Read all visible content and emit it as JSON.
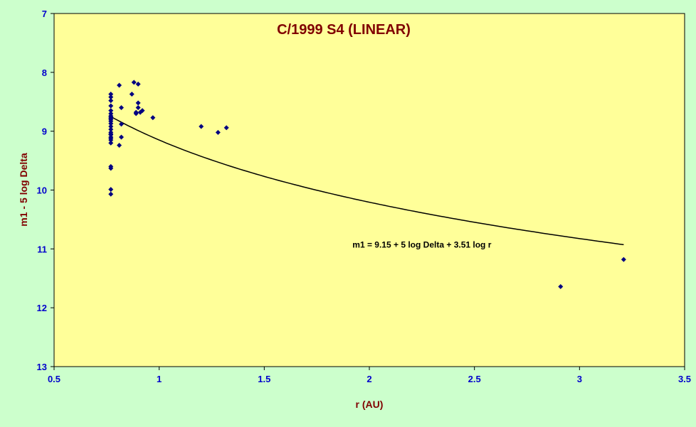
{
  "colors": {
    "page_background": "#ccffcc",
    "plot_background": "#ffff99",
    "title": "#800000",
    "axis_title": "#800000",
    "tick_label": "#0000cc",
    "points": "#000080",
    "curve": "#000000"
  },
  "chart_data": {
    "type": "scatter",
    "title": "C/1999 S4 (LINEAR)",
    "xlabel": "r (AU)",
    "ylabel": "m1 - 5 log Delta",
    "xlim": [
      0.5,
      3.5
    ],
    "ylim": [
      13,
      7
    ],
    "y_axis_reversed": true,
    "grid": false,
    "legend": "none",
    "x_ticks": [
      "0.5",
      "1",
      "1.5",
      "2",
      "2.5",
      "3",
      "3.5"
    ],
    "y_ticks": [
      "7",
      "8",
      "9",
      "10",
      "11",
      "12",
      "13"
    ],
    "series": [
      {
        "kind": "points",
        "marker": "diamond",
        "x": [
          0.77,
          0.77,
          0.77,
          0.77,
          0.77,
          0.77,
          0.77,
          0.77,
          0.77,
          0.77,
          0.77,
          0.77,
          0.77,
          0.77,
          0.77,
          0.77,
          0.77,
          0.77,
          0.77,
          0.77,
          0.77,
          0.77,
          0.77,
          0.77,
          0.77,
          0.81,
          0.81,
          0.82,
          0.82,
          0.82,
          0.87,
          0.88,
          0.89,
          0.89,
          0.9,
          0.9,
          0.9,
          0.91,
          0.92,
          0.97,
          1.2,
          1.28,
          1.32,
          2.91,
          3.21
        ],
        "y": [
          8.37,
          8.42,
          8.48,
          8.57,
          8.7,
          8.74,
          8.76,
          8.8,
          8.83,
          8.87,
          8.92,
          8.97,
          9.02,
          9.06,
          9.1,
          9.15,
          9.2,
          9.6,
          9.63,
          9.99,
          10.07,
          8.65,
          8.78,
          9.05,
          9.12,
          8.22,
          9.24,
          8.6,
          8.88,
          9.1,
          8.37,
          8.17,
          8.68,
          8.7,
          8.2,
          8.52,
          8.6,
          8.68,
          8.65,
          8.77,
          8.92,
          9.02,
          8.94,
          11.64,
          11.18
        ]
      },
      {
        "kind": "fit-curve",
        "model": "m1 - 5 log Delta = H + n log r",
        "H": 9.15,
        "n": 3.51,
        "x_range": [
          0.77,
          3.21
        ]
      }
    ],
    "annotations": [
      {
        "text": "m1 = 9.15 + 5 log Delta + 3.51 log r",
        "x": 2.25,
        "y": 10.93
      }
    ]
  }
}
